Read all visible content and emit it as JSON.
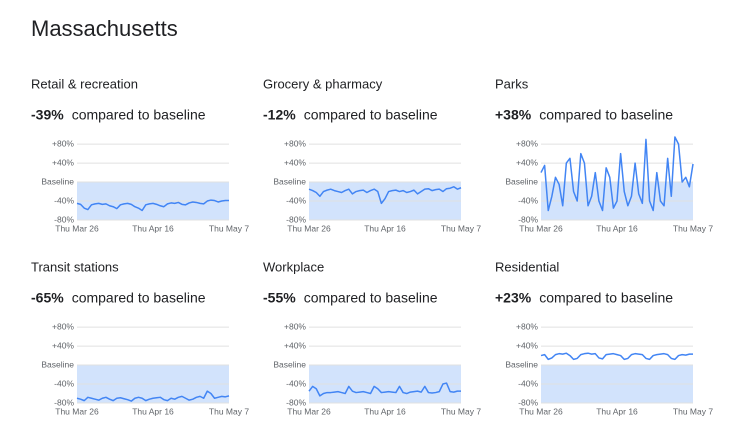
{
  "page_title": "Massachusetts",
  "chart_data": [
    {
      "type": "line",
      "title": "Retail & recreation",
      "summary": {
        "value": -39,
        "label": "-39%"
      },
      "summary_text": "compared to baseline",
      "color": "#4285f4",
      "categories": [
        "Thu Mar 26",
        null,
        null,
        null,
        null,
        null,
        null,
        null,
        null,
        null,
        null,
        null,
        null,
        null,
        null,
        null,
        null,
        null,
        null,
        null,
        null,
        "Thu Apr 16",
        null,
        null,
        null,
        null,
        null,
        null,
        null,
        null,
        null,
        null,
        null,
        null,
        null,
        null,
        null,
        null,
        null,
        null,
        null,
        null,
        "Thu May 7"
      ],
      "values": [
        -45,
        -47,
        -55,
        -58,
        -48,
        -46,
        -45,
        -47,
        -46,
        -50,
        -52,
        -56,
        -48,
        -46,
        -45,
        -47,
        -52,
        -55,
        -60,
        -48,
        -46,
        -45,
        -47,
        -50,
        -52,
        -46,
        -44,
        -45,
        -43,
        -47,
        -48,
        -44,
        -42,
        -43,
        -45,
        -46,
        -40,
        -38,
        -39,
        -42,
        -40,
        -39,
        -39
      ],
      "ylim": [
        -80,
        95
      ],
      "yticks": [
        {
          "value": -80,
          "label": "-80%"
        },
        {
          "value": -40,
          "label": "-40%"
        },
        {
          "value": 0,
          "label": "Baseline"
        },
        {
          "value": 40,
          "label": "+40%"
        },
        {
          "value": 80,
          "label": "+80%"
        }
      ]
    },
    {
      "type": "line",
      "title": "Grocery & pharmacy",
      "summary": {
        "value": -12,
        "label": "-12%"
      },
      "summary_text": "compared to baseline",
      "color": "#4285f4",
      "categories": [
        "Thu Mar 26",
        null,
        null,
        null,
        null,
        null,
        null,
        null,
        null,
        null,
        null,
        null,
        null,
        null,
        null,
        null,
        null,
        null,
        null,
        null,
        null,
        "Thu Apr 16",
        null,
        null,
        null,
        null,
        null,
        null,
        null,
        null,
        null,
        null,
        null,
        null,
        null,
        null,
        null,
        null,
        null,
        null,
        null,
        null,
        "Thu May 7"
      ],
      "values": [
        -15,
        -18,
        -22,
        -30,
        -20,
        -17,
        -15,
        -18,
        -20,
        -22,
        -18,
        -15,
        -25,
        -20,
        -18,
        -17,
        -22,
        -18,
        -15,
        -20,
        -45,
        -35,
        -20,
        -18,
        -17,
        -20,
        -18,
        -22,
        -20,
        -17,
        -25,
        -20,
        -15,
        -14,
        -18,
        -16,
        -15,
        -20,
        -14,
        -13,
        -10,
        -15,
        -12
      ],
      "ylim": [
        -80,
        95
      ],
      "yticks": [
        {
          "value": -80,
          "label": "-80%"
        },
        {
          "value": -40,
          "label": "-40%"
        },
        {
          "value": 0,
          "label": "Baseline"
        },
        {
          "value": 40,
          "label": "+40%"
        },
        {
          "value": 80,
          "label": "+80%"
        }
      ]
    },
    {
      "type": "line",
      "title": "Parks",
      "summary": {
        "value": 38,
        "label": "+38%"
      },
      "summary_text": "compared to baseline",
      "color": "#4285f4",
      "categories": [
        "Thu Mar 26",
        null,
        null,
        null,
        null,
        null,
        null,
        null,
        null,
        null,
        null,
        null,
        null,
        null,
        null,
        null,
        null,
        null,
        null,
        null,
        null,
        "Thu Apr 16",
        null,
        null,
        null,
        null,
        null,
        null,
        null,
        null,
        null,
        null,
        null,
        null,
        null,
        null,
        null,
        null,
        null,
        null,
        null,
        null,
        "Thu May 7"
      ],
      "values": [
        20,
        35,
        -60,
        -30,
        10,
        -5,
        -50,
        40,
        50,
        -20,
        -40,
        60,
        40,
        -50,
        -30,
        20,
        -40,
        -60,
        30,
        10,
        -55,
        -40,
        60,
        -20,
        -50,
        -30,
        40,
        -25,
        -45,
        90,
        -40,
        -60,
        20,
        -40,
        -50,
        50,
        -30,
        95,
        80,
        0,
        10,
        -10,
        38
      ],
      "ylim": [
        -80,
        95
      ],
      "yticks": [
        {
          "value": -80,
          "label": "-80%"
        },
        {
          "value": -40,
          "label": "-40%"
        },
        {
          "value": 0,
          "label": "Baseline"
        },
        {
          "value": 40,
          "label": "+40%"
        },
        {
          "value": 80,
          "label": "+80%"
        }
      ]
    },
    {
      "type": "line",
      "title": "Transit stations",
      "summary": {
        "value": -65,
        "label": "-65%"
      },
      "summary_text": "compared to baseline",
      "color": "#4285f4",
      "categories": [
        "Thu Mar 26",
        null,
        null,
        null,
        null,
        null,
        null,
        null,
        null,
        null,
        null,
        null,
        null,
        null,
        null,
        null,
        null,
        null,
        null,
        null,
        null,
        "Thu Apr 16",
        null,
        null,
        null,
        null,
        null,
        null,
        null,
        null,
        null,
        null,
        null,
        null,
        null,
        null,
        null,
        null,
        null,
        null,
        null,
        null,
        "Thu May 7"
      ],
      "values": [
        -70,
        -72,
        -75,
        -68,
        -70,
        -72,
        -74,
        -70,
        -68,
        -72,
        -75,
        -70,
        -69,
        -71,
        -73,
        -76,
        -70,
        -68,
        -70,
        -75,
        -72,
        -70,
        -69,
        -68,
        -73,
        -75,
        -70,
        -72,
        -68,
        -66,
        -70,
        -74,
        -72,
        -68,
        -66,
        -70,
        -55,
        -60,
        -70,
        -68,
        -66,
        -67,
        -65
      ],
      "ylim": [
        -80,
        95
      ],
      "yticks": [
        {
          "value": -80,
          "label": "-80%"
        },
        {
          "value": -40,
          "label": "-40%"
        },
        {
          "value": 0,
          "label": "Baseline"
        },
        {
          "value": 40,
          "label": "+40%"
        },
        {
          "value": 80,
          "label": "+80%"
        }
      ]
    },
    {
      "type": "line",
      "title": "Workplace",
      "summary": {
        "value": -55,
        "label": "-55%"
      },
      "summary_text": "compared to baseline",
      "color": "#4285f4",
      "categories": [
        "Thu Mar 26",
        null,
        null,
        null,
        null,
        null,
        null,
        null,
        null,
        null,
        null,
        null,
        null,
        null,
        null,
        null,
        null,
        null,
        null,
        null,
        null,
        "Thu Apr 16",
        null,
        null,
        null,
        null,
        null,
        null,
        null,
        null,
        null,
        null,
        null,
        null,
        null,
        null,
        null,
        null,
        null,
        null,
        null,
        null,
        "Thu May 7"
      ],
      "values": [
        -55,
        -45,
        -50,
        -65,
        -60,
        -58,
        -58,
        -57,
        -56,
        -58,
        -60,
        -45,
        -55,
        -58,
        -57,
        -56,
        -58,
        -60,
        -45,
        -50,
        -58,
        -57,
        -56,
        -57,
        -58,
        -45,
        -58,
        -60,
        -57,
        -56,
        -55,
        -57,
        -45,
        -58,
        -59,
        -58,
        -56,
        -40,
        -38,
        -56,
        -57,
        -55,
        -55
      ],
      "ylim": [
        -80,
        95
      ],
      "yticks": [
        {
          "value": -80,
          "label": "-80%"
        },
        {
          "value": -40,
          "label": "-40%"
        },
        {
          "value": 0,
          "label": "Baseline"
        },
        {
          "value": 40,
          "label": "+40%"
        },
        {
          "value": 80,
          "label": "+80%"
        }
      ]
    },
    {
      "type": "line",
      "title": "Residential",
      "summary": {
        "value": 23,
        "label": "+23%"
      },
      "summary_text": "compared to baseline",
      "color": "#4285f4",
      "categories": [
        "Thu Mar 26",
        null,
        null,
        null,
        null,
        null,
        null,
        null,
        null,
        null,
        null,
        null,
        null,
        null,
        null,
        null,
        null,
        null,
        null,
        null,
        null,
        "Thu Apr 16",
        null,
        null,
        null,
        null,
        null,
        null,
        null,
        null,
        null,
        null,
        null,
        null,
        null,
        null,
        null,
        null,
        null,
        null,
        null,
        null,
        "Thu May 7"
      ],
      "values": [
        20,
        22,
        12,
        15,
        22,
        24,
        23,
        25,
        20,
        12,
        14,
        22,
        24,
        25,
        23,
        24,
        15,
        13,
        22,
        23,
        24,
        22,
        20,
        12,
        14,
        22,
        24,
        23,
        22,
        14,
        12,
        20,
        22,
        23,
        24,
        22,
        14,
        12,
        20,
        22,
        21,
        23,
        23
      ],
      "ylim": [
        -80,
        95
      ],
      "yticks": [
        {
          "value": -80,
          "label": "-80%"
        },
        {
          "value": -40,
          "label": "-40%"
        },
        {
          "value": 0,
          "label": "Baseline"
        },
        {
          "value": 40,
          "label": "+40%"
        },
        {
          "value": 80,
          "label": "+80%"
        }
      ]
    }
  ]
}
